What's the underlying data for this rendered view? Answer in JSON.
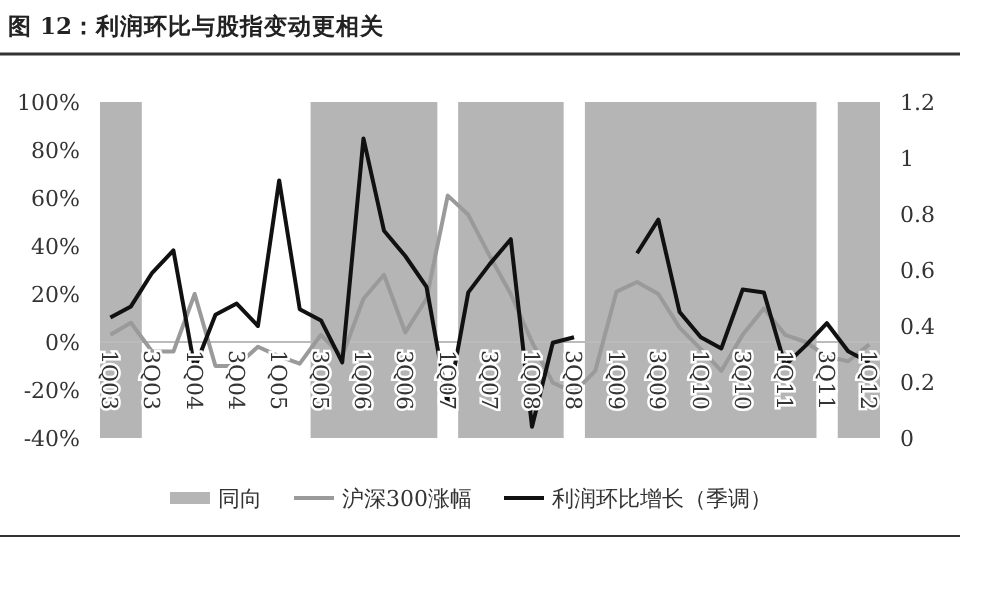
{
  "chart_data": {
    "type": "line",
    "title": "图 12：利润环比与股指变动更相关",
    "x": [
      "2003-02-15",
      "2003-05-15",
      "2003-08-15",
      "2003-11-15",
      "2004-02-15",
      "2004-05-15",
      "2004-08-15",
      "2004-11-15",
      "2005-02-15",
      "2005-05-15",
      "2005-08-15",
      "2005-11-15",
      "2006-02-15",
      "2006-05-15",
      "2006-08-15",
      "2006-11-15",
      "2007-02-15",
      "2007-05-15",
      "2007-08-15",
      "2007-11-15",
      "2008-02-15",
      "2008-05-15",
      "2008-08-15",
      "2008-11-15",
      "2009-02-15",
      "2009-05-15",
      "2009-08-15",
      "2009-11-15",
      "2010-02-15",
      "2010-05-15",
      "2010-08-15",
      "2010-11-15",
      "2011-02-15",
      "2011-05-15",
      "2011-08-15",
      "2011-11-15",
      "2012-02-15"
    ],
    "xlim": [
      "2003-01-01",
      "2012-04-01"
    ],
    "xticks": [
      {
        "value": "2003-02-15",
        "label": "1Q03"
      },
      {
        "value": "2003-08-15",
        "label": "3Q03"
      },
      {
        "value": "2004-02-15",
        "label": "1Q04"
      },
      {
        "value": "2004-08-15",
        "label": "3Q04"
      },
      {
        "value": "2005-02-15",
        "label": "1Q05"
      },
      {
        "value": "2005-08-15",
        "label": "3Q05"
      },
      {
        "value": "2006-02-15",
        "label": "1Q06"
      },
      {
        "value": "2006-08-15",
        "label": "3Q06"
      },
      {
        "value": "2007-02-15",
        "label": "1Q07"
      },
      {
        "value": "2007-08-15",
        "label": "3Q07"
      },
      {
        "value": "2008-02-15",
        "label": "1Q08"
      },
      {
        "value": "2008-08-15",
        "label": "3Q08"
      },
      {
        "value": "2009-02-15",
        "label": "1Q09"
      },
      {
        "value": "2009-08-15",
        "label": "3Q09"
      },
      {
        "value": "2010-02-15",
        "label": "1Q10"
      },
      {
        "value": "2010-08-15",
        "label": "3Q10"
      },
      {
        "value": "2011-02-15",
        "label": "1Q11"
      },
      {
        "value": "2011-08-15",
        "label": "3Q11"
      },
      {
        "value": "2012-02-15",
        "label": "1Q12"
      }
    ],
    "bands": [
      {
        "axis": "x",
        "from": "2003-01-01",
        "to": "2003-07-01",
        "label": "同向",
        "color": "#b5b5b5"
      },
      {
        "axis": "x",
        "from": "2005-07-01",
        "to": "2007-01-01",
        "color": "#b5b5b5"
      },
      {
        "axis": "x",
        "from": "2007-04-01",
        "to": "2008-07-01",
        "color": "#b5b5b5"
      },
      {
        "axis": "x",
        "from": "2008-10-01",
        "to": "2011-07-01",
        "color": "#b5b5b5"
      },
      {
        "axis": "x",
        "from": "2011-10-01",
        "to": "2012-04-01",
        "color": "#b5b5b5"
      }
    ],
    "series": [
      {
        "name": "沪深300涨幅",
        "type": "line",
        "color": "#9a9a9a",
        "values": [
          3,
          8,
          -4,
          -4,
          20,
          -10,
          -10,
          -2,
          -6,
          -9,
          3,
          -6,
          18,
          28,
          4,
          18,
          61,
          53,
          36,
          20,
          0,
          -17,
          -21,
          -12,
          21,
          25,
          20,
          6,
          -3,
          -12,
          3,
          14,
          3,
          0,
          -6,
          -8,
          -1
        ]
      },
      {
        "name": "利润环比增长（季调）",
        "type": "line",
        "axis": "y2",
        "color": "#111111",
        "values": [
          0.43,
          0.47,
          0.59,
          0.67,
          0.25,
          0.44,
          0.48,
          0.4,
          0.92,
          0.46,
          0.42,
          0.27,
          1.07,
          0.74,
          0.65,
          0.54,
          0.12,
          0.52,
          0.62,
          0.71,
          0.04,
          0.34,
          0.36,
          null,
          null,
          0.66,
          0.78,
          0.45,
          0.36,
          0.32,
          0.53,
          0.52,
          0.26,
          0.33,
          0.41,
          0.31,
          0.27
        ]
      }
    ],
    "ylim": [
      -40,
      100
    ],
    "yticks": [
      {
        "value": -40,
        "label": "-40%"
      },
      {
        "value": -20,
        "label": "-20%"
      },
      {
        "value": 0,
        "label": "0%"
      },
      {
        "value": 20,
        "label": "20%"
      },
      {
        "value": 40,
        "label": "40%"
      },
      {
        "value": 60,
        "label": "60%"
      },
      {
        "value": 80,
        "label": "80%"
      },
      {
        "value": 100,
        "label": "100%"
      }
    ],
    "y2lim": [
      0,
      1.2
    ],
    "y2ticks": [
      0,
      0.2,
      0.4,
      0.6,
      0.8,
      1,
      1.2
    ],
    "legend": "bottom"
  }
}
